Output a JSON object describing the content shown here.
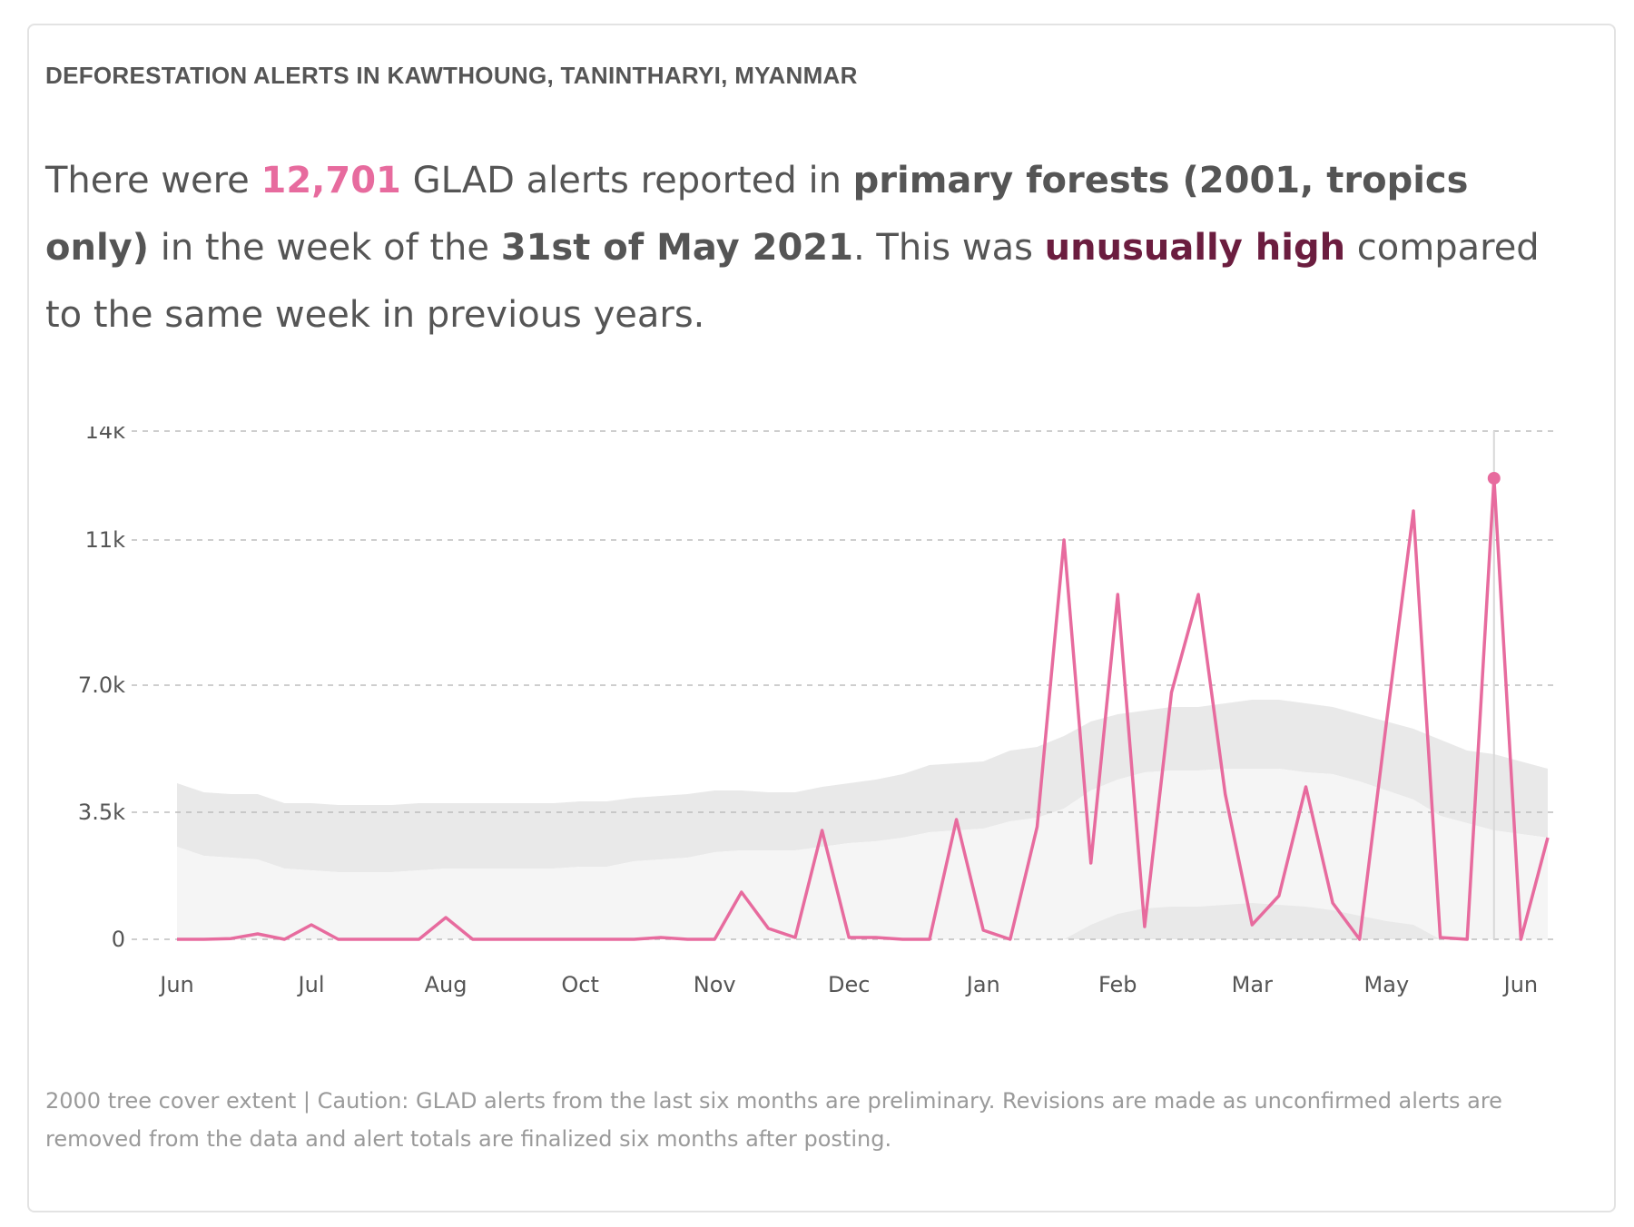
{
  "widget": {
    "title": "DEFORESTATION ALERTS IN KAWTHOUNG, TANINTHARYI, MYANMAR"
  },
  "sentence": {
    "part1": "There were ",
    "count": "12,701",
    "part2": " GLAD alerts reported in ",
    "forest": "primary forests (2001, tropics only)",
    "part3": " in the week of the ",
    "date": "31st of May 2021",
    "part4": ". This was ",
    "status": "unusually high",
    "part5": " compared to the same week in previous years."
  },
  "caption": "2000 tree cover extent | Caution: GLAD alerts from the last six months are preliminary. Revisions are made as unconfirmed alerts are removed from the data and alert totals are finalized six months after posting.",
  "colors": {
    "line": "#e76b9e",
    "band_outer": "#e9e9e9",
    "band_inner": "#f5f5f5",
    "band_low": "#e9e9e9",
    "grid": "#bdbdbd",
    "axis_text": "#555555"
  },
  "chart_data": {
    "type": "line",
    "title": "",
    "xlabel": "",
    "ylabel": "",
    "ylim": [
      0,
      14000
    ],
    "y_ticks": [
      0,
      3500,
      7000,
      11000,
      14000
    ],
    "y_tick_labels": [
      "0",
      "3.5k",
      "7.0k",
      "11k",
      "14k"
    ],
    "x_tick_labels": [
      "Jun",
      "Jul",
      "Aug",
      "Oct",
      "Nov",
      "Dec",
      "Jan",
      "Feb",
      "Mar",
      "May",
      "Jun"
    ],
    "x_tick_weeks": [
      0,
      5,
      10,
      15,
      20,
      25,
      30,
      35,
      40,
      45,
      50
    ],
    "grid": "horizontal dashed",
    "highlight": {
      "week_index": 49,
      "value": 12701,
      "label": "31st of May 2021"
    },
    "series": [
      {
        "values": [
          0,
          0,
          20,
          150,
          0,
          400,
          0,
          0,
          0,
          0,
          600,
          0,
          0,
          0,
          0,
          0,
          0,
          0,
          50,
          0,
          0,
          1300,
          300,
          50,
          3000,
          50,
          50,
          0,
          0,
          3300,
          250,
          0,
          3100,
          11000,
          2100,
          9500,
          350,
          6800,
          9500,
          4000,
          400,
          1200,
          4200,
          1000,
          0,
          6000,
          11800,
          50,
          0,
          12701,
          0,
          2800
        ]
      }
    ],
    "band_outer_upper": [
      4300,
      4050,
      4000,
      4000,
      3750,
      3750,
      3700,
      3700,
      3700,
      3750,
      3750,
      3750,
      3750,
      3750,
      3750,
      3800,
      3800,
      3900,
      3950,
      4000,
      4100,
      4100,
      4050,
      4050,
      4200,
      4300,
      4400,
      4550,
      4800,
      4850,
      4900,
      5200,
      5300,
      5600,
      6000,
      6200,
      6300,
      6400,
      6400,
      6500,
      6600,
      6600,
      6500,
      6400,
      6200,
      6000,
      5800,
      5500,
      5200,
      5100,
      4900,
      4700
    ],
    "band_inner_upper": [
      2550,
      2300,
      2250,
      2200,
      1950,
      1900,
      1850,
      1850,
      1850,
      1900,
      1950,
      1950,
      1950,
      1950,
      1950,
      2000,
      2000,
      2150,
      2200,
      2250,
      2400,
      2450,
      2450,
      2450,
      2550,
      2650,
      2700,
      2800,
      2950,
      3000,
      3050,
      3250,
      3350,
      3600,
      4100,
      4400,
      4600,
      4650,
      4650,
      4700,
      4700,
      4700,
      4600,
      4550,
      4350,
      4100,
      3850,
      3400,
      3200,
      3000,
      2900,
      2800
    ],
    "band_low_upper": [
      0,
      0,
      0,
      0,
      0,
      0,
      0,
      0,
      0,
      0,
      0,
      0,
      0,
      0,
      0,
      0,
      0,
      0,
      0,
      0,
      0,
      0,
      0,
      0,
      0,
      0,
      0,
      0,
      0,
      0,
      0,
      0,
      0,
      0,
      400,
      700,
      850,
      900,
      900,
      950,
      1000,
      950,
      900,
      800,
      650,
      500,
      400,
      0,
      0,
      0,
      0,
      0
    ]
  }
}
